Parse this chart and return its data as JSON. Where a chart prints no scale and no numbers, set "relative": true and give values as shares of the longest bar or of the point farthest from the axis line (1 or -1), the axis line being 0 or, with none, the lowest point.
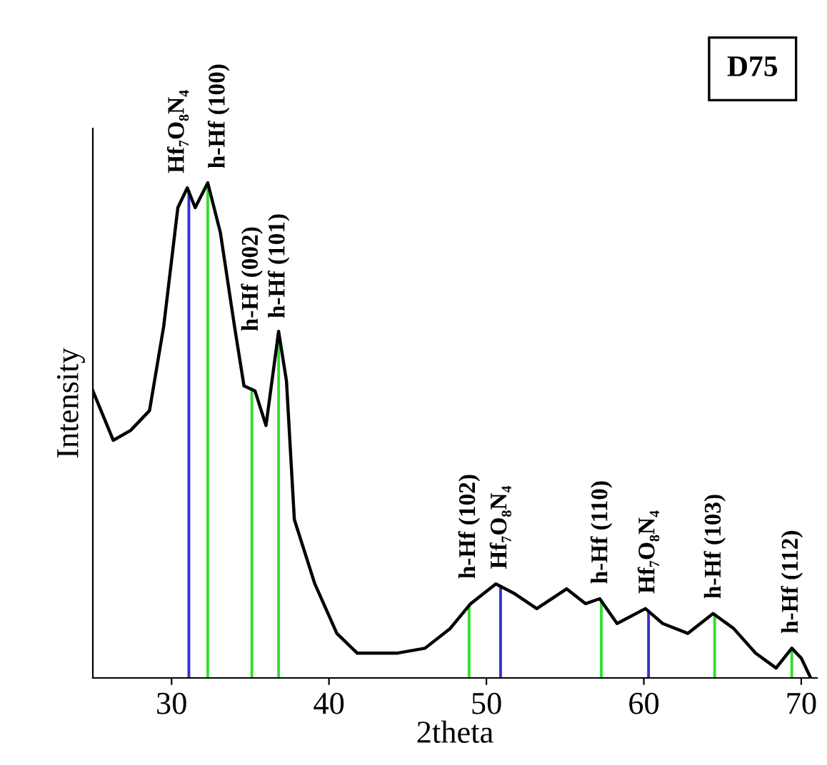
{
  "chart_data": {
    "type": "line",
    "xlabel": "2theta",
    "ylabel": "Intensity",
    "relative": true,
    "xlim": [
      25,
      71
    ],
    "xticks": [
      30,
      40,
      50,
      60,
      70
    ],
    "series": [
      {
        "color": "#000000",
        "x": [
          25.0,
          26.3,
          27.4,
          28.6,
          29.5,
          30.4,
          31.0,
          31.5,
          32.3,
          33.1,
          34.0,
          34.6,
          35.3,
          36.0,
          36.8,
          37.3,
          37.8,
          39.1,
          40.5,
          41.8,
          44.3,
          46.1,
          47.7,
          49.0,
          50.6,
          51.8,
          53.2,
          55.1,
          56.3,
          57.2,
          58.3,
          60.1,
          61.2,
          62.8,
          64.4,
          65.7,
          67.1,
          68.4,
          69.4,
          70.0,
          70.6
        ],
        "values": [
          0.58,
          0.48,
          0.5,
          0.54,
          0.71,
          0.95,
          0.99,
          0.95,
          1.0,
          0.9,
          0.71,
          0.59,
          0.58,
          0.51,
          0.7,
          0.6,
          0.32,
          0.19,
          0.09,
          0.05,
          0.05,
          0.06,
          0.1,
          0.15,
          0.19,
          0.17,
          0.14,
          0.18,
          0.15,
          0.16,
          0.11,
          0.14,
          0.11,
          0.09,
          0.13,
          0.1,
          0.05,
          0.02,
          0.06,
          0.04,
          0.0
        ]
      }
    ],
    "ref_lines": [
      {
        "axis": "x",
        "value": 31.1,
        "label": "Hf₇O₈N₄",
        "color": "#3333cc"
      },
      {
        "axis": "x",
        "value": 32.3,
        "label": "h-Hf (100)",
        "color": "#33dd33"
      },
      {
        "axis": "x",
        "value": 35.1,
        "label": "h-Hf (002)",
        "color": "#33dd33"
      },
      {
        "axis": "x",
        "value": 36.8,
        "label": "h-Hf (101)",
        "color": "#33dd33"
      },
      {
        "axis": "x",
        "value": 48.9,
        "label": "h-Hf (102)",
        "color": "#33dd33"
      },
      {
        "axis": "x",
        "value": 50.9,
        "label": "Hf₇O₈N₄",
        "color": "#3333cc"
      },
      {
        "axis": "x",
        "value": 57.3,
        "label": "h-Hf (110)",
        "color": "#33dd33"
      },
      {
        "axis": "x",
        "value": 60.3,
        "label": "Hf₇O₈N₄",
        "color": "#3333cc"
      },
      {
        "axis": "x",
        "value": 64.5,
        "label": "h-Hf (103)",
        "color": "#33dd33"
      },
      {
        "axis": "x",
        "value": 69.4,
        "label": "h-Hf (112)",
        "color": "#33dd33"
      }
    ],
    "annotations": [
      "D75"
    ],
    "grid": false,
    "legend": false,
    "marker": "none",
    "line_style": "solid"
  }
}
